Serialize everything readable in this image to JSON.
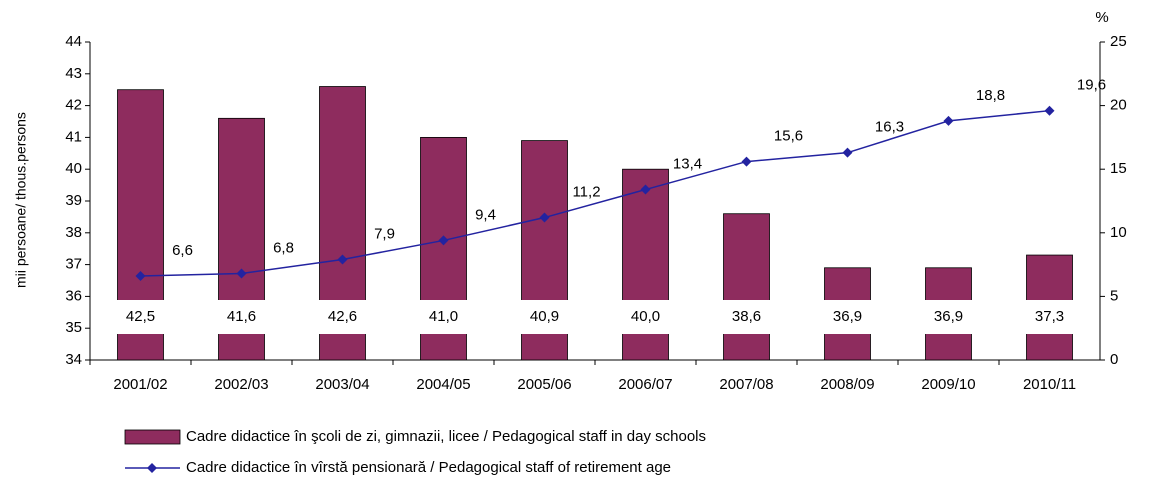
{
  "chart_data": {
    "type": "bar",
    "y_label": "mii persoane/ thous.persons",
    "y2_label": "%",
    "categories": [
      "2001/02",
      "2002/03",
      "2003/04",
      "2004/05",
      "2005/06",
      "2006/07",
      "2007/08",
      "2008/09",
      "2009/10",
      "2010/11"
    ],
    "series": [
      {
        "name": "Cadre didactice în şcoli de zi, gimnazii, licee / Pedagogical staff in day schools",
        "type": "bar",
        "color": "#8e2c5e",
        "values": [
          42.5,
          41.6,
          42.6,
          41.0,
          40.9,
          40.0,
          38.6,
          36.9,
          36.9,
          37.3
        ],
        "value_labels": [
          "42,5",
          "41,6",
          "42,6",
          "41,0",
          "40,9",
          "40,0",
          "38,6",
          "36,9",
          "36,9",
          "37,3"
        ]
      },
      {
        "name": "Cadre didactice în vîrstă pensionară / Pedagogical staff of retirement age",
        "type": "line",
        "axis": "y2",
        "color": "#2323a0",
        "values": [
          6.6,
          6.8,
          7.9,
          9.4,
          11.2,
          13.4,
          15.6,
          16.3,
          18.8,
          19.6
        ],
        "value_labels": [
          "6,6",
          "6,8",
          "7,9",
          "9,4",
          "11,2",
          "13,4",
          "15,6",
          "16,3",
          "18,8",
          "19,6"
        ]
      }
    ],
    "ylim": [
      34,
      44
    ],
    "yticks": [
      34,
      35,
      36,
      37,
      38,
      39,
      40,
      41,
      42,
      43,
      44
    ],
    "y2lim": [
      0,
      25
    ],
    "y2ticks": [
      0,
      5,
      10,
      15,
      20,
      25
    ],
    "grid": false
  }
}
